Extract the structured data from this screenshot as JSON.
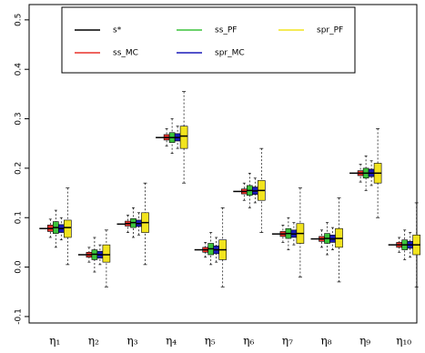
{
  "chart_data": {
    "type": "box",
    "categories": [
      "η₁",
      "η₂",
      "η₃",
      "η₄",
      "η₅",
      "η₆",
      "η₇",
      "η₈",
      "η₉",
      "η₁₀"
    ],
    "ylim": [
      -0.113,
      0.531
    ],
    "yticks": [
      {
        "value": -0.1,
        "label": "-0.1"
      },
      {
        "value": 0,
        "label": "0.0"
      },
      0.1,
      0.2,
      0.3,
      0.4,
      0.5
    ],
    "reference": {
      "name": "s*",
      "color": "#000000",
      "values": [
        0.078,
        0.025,
        0.087,
        0.262,
        0.035,
        0.153,
        0.067,
        0.057,
        0.19,
        0.045
      ]
    },
    "series": [
      {
        "name": "ss_MC",
        "color": "#e8302a",
        "min": [
          0.06,
          0.01,
          0.07,
          0.245,
          0.02,
          0.135,
          0.05,
          0.04,
          0.172,
          0.03
        ],
        "q1": [
          0.072,
          0.02,
          0.083,
          0.257,
          0.03,
          0.148,
          0.062,
          0.052,
          0.185,
          0.04
        ],
        "median": [
          0.078,
          0.025,
          0.088,
          0.262,
          0.035,
          0.153,
          0.067,
          0.057,
          0.19,
          0.045
        ],
        "q3": [
          0.085,
          0.03,
          0.093,
          0.268,
          0.04,
          0.158,
          0.072,
          0.062,
          0.195,
          0.05
        ],
        "max": [
          0.097,
          0.04,
          0.105,
          0.28,
          0.05,
          0.17,
          0.085,
          0.075,
          0.208,
          0.06
        ]
      },
      {
        "name": "ss_PF",
        "color": "#3cc43c",
        "min": [
          0.04,
          -0.01,
          0.06,
          0.23,
          0.005,
          0.12,
          0.035,
          0.025,
          0.155,
          0.015
        ],
        "q1": [
          0.068,
          0.015,
          0.08,
          0.252,
          0.025,
          0.145,
          0.058,
          0.048,
          0.18,
          0.035
        ],
        "median": [
          0.08,
          0.026,
          0.09,
          0.262,
          0.037,
          0.155,
          0.068,
          0.058,
          0.19,
          0.045
        ],
        "q3": [
          0.092,
          0.035,
          0.098,
          0.272,
          0.048,
          0.165,
          0.078,
          0.068,
          0.2,
          0.055
        ],
        "max": [
          0.115,
          0.06,
          0.12,
          0.3,
          0.07,
          0.19,
          0.1,
          0.09,
          0.225,
          0.075
        ]
      },
      {
        "name": "spr_MC",
        "color": "#1a1ab8",
        "min": [
          0.055,
          0.005,
          0.065,
          0.24,
          0.01,
          0.13,
          0.045,
          0.035,
          0.165,
          0.02
        ],
        "q1": [
          0.07,
          0.018,
          0.082,
          0.255,
          0.027,
          0.147,
          0.06,
          0.05,
          0.183,
          0.038
        ],
        "median": [
          0.078,
          0.025,
          0.088,
          0.262,
          0.035,
          0.154,
          0.067,
          0.057,
          0.19,
          0.045
        ],
        "q3": [
          0.086,
          0.032,
          0.095,
          0.27,
          0.043,
          0.162,
          0.075,
          0.065,
          0.198,
          0.052
        ],
        "max": [
          0.1,
          0.045,
          0.11,
          0.285,
          0.06,
          0.18,
          0.09,
          0.08,
          0.215,
          0.07
        ]
      },
      {
        "name": "spr_PF",
        "color": "#f2e41e",
        "min": [
          0.005,
          -0.04,
          0.005,
          0.17,
          -0.04,
          0.07,
          -0.02,
          -0.03,
          0.1,
          -0.04
        ],
        "q1": [
          0.06,
          0.01,
          0.07,
          0.24,
          0.015,
          0.135,
          0.048,
          0.04,
          0.17,
          0.025
        ],
        "median": [
          0.08,
          0.025,
          0.09,
          0.265,
          0.035,
          0.155,
          0.068,
          0.058,
          0.19,
          0.045
        ],
        "q3": [
          0.095,
          0.045,
          0.11,
          0.285,
          0.055,
          0.175,
          0.088,
          0.078,
          0.21,
          0.065
        ],
        "max": [
          0.16,
          0.075,
          0.17,
          0.355,
          0.12,
          0.24,
          0.16,
          0.14,
          0.28,
          0.13
        ]
      }
    ]
  }
}
